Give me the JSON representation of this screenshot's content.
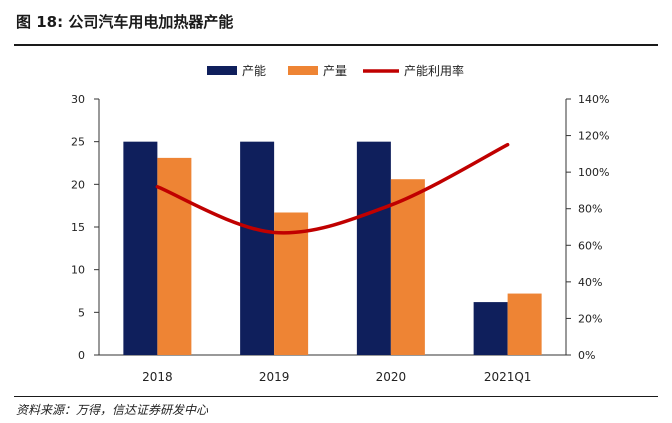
{
  "figure": {
    "title": "图 18:  公司汽车用电加热器产能",
    "source": "资料来源：万得，信达证券研发中心"
  },
  "chart_data": {
    "type": "bar",
    "categories": [
      "2018",
      "2019",
      "2020",
      "2021Q1"
    ],
    "series": [
      {
        "name": "产能",
        "kind": "bar",
        "axis": "left",
        "color": "#0f1f5c",
        "values": [
          25,
          25,
          25,
          6.2
        ]
      },
      {
        "name": "产量",
        "kind": "bar",
        "axis": "left",
        "color": "#ee8434",
        "values": [
          23.1,
          16.7,
          20.6,
          7.2
        ]
      },
      {
        "name": "产能利用率",
        "kind": "line",
        "axis": "right",
        "color": "#c00000",
        "values": [
          92,
          67,
          82,
          115
        ]
      }
    ],
    "y_left": {
      "min": 0,
      "max": 30,
      "ticks": [
        "0",
        "5",
        "10",
        "15",
        "20",
        "25",
        "30"
      ]
    },
    "y_right": {
      "min": 0,
      "max": 140,
      "ticks": [
        "0%",
        "20%",
        "40%",
        "60%",
        "80%",
        "100%",
        "120%",
        "140%"
      ]
    },
    "legend_position": "top",
    "grid": false
  }
}
